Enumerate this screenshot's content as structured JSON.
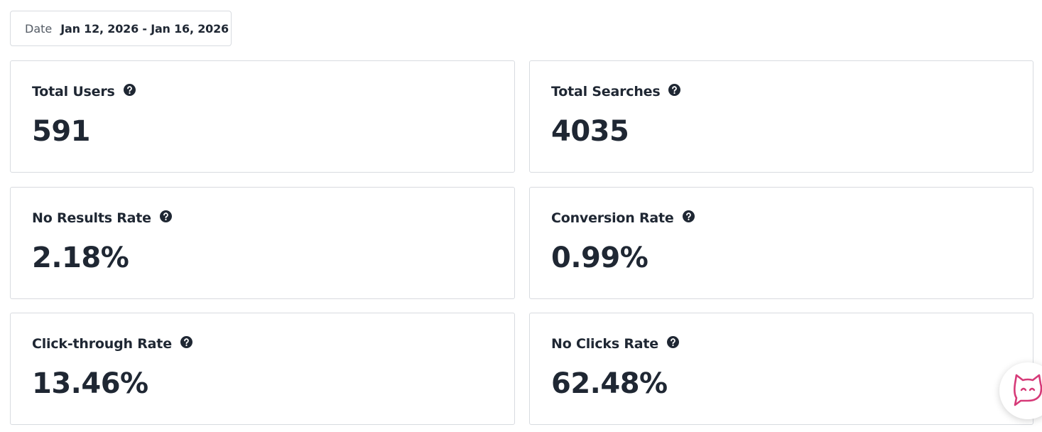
{
  "filter": {
    "label": "Date",
    "value": "Jan 12, 2026 - Jan 16, 2026"
  },
  "cards": [
    {
      "title": "Total Users",
      "value": "591"
    },
    {
      "title": "Total Searches",
      "value": "4035"
    },
    {
      "title": "No Results Rate",
      "value": "2.18%"
    },
    {
      "title": "Conversion Rate",
      "value": "0.99%"
    },
    {
      "title": "Click-through Rate",
      "value": "13.46%"
    },
    {
      "title": "No Clicks Rate",
      "value": "62.48%"
    }
  ]
}
